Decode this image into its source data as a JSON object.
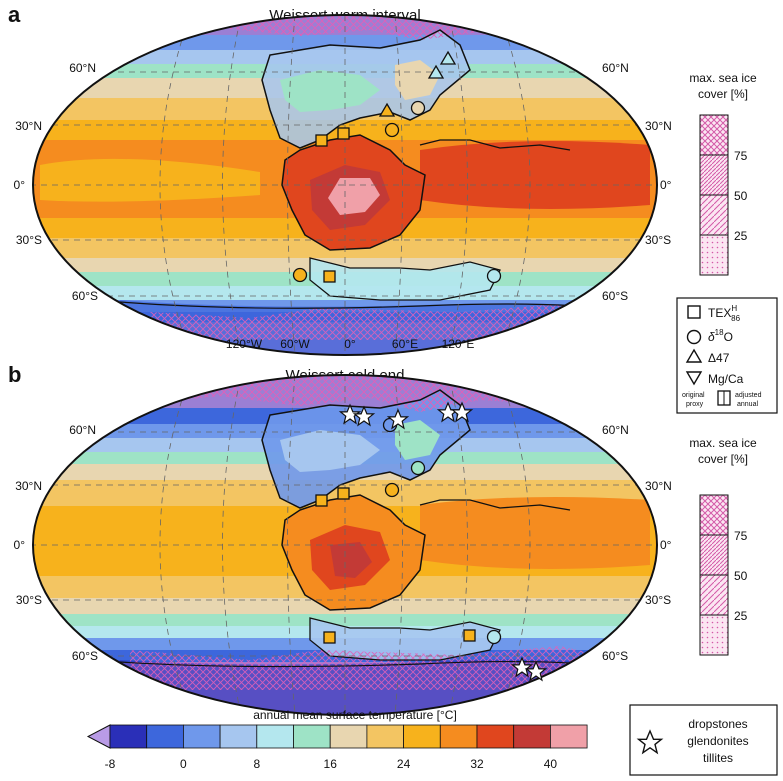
{
  "panels": [
    {
      "letter": "a",
      "title": "Weissert warm interval",
      "lat_labels": {
        "n60": "60°N",
        "n30": "30°N",
        "eq": "0°",
        "s30": "30°S",
        "s60": "60°S"
      },
      "lon_labels": [
        "120°W",
        "60°W",
        "0°",
        "60°E",
        "120°E"
      ]
    },
    {
      "letter": "b",
      "title": "Weissert cold end",
      "lat_labels": {
        "n60": "60°N",
        "n30": "30°N",
        "eq": "0°",
        "s30": "30°S",
        "s60": "60°S"
      }
    }
  ],
  "sea_ice_legend": {
    "title_line1": "max. sea ice",
    "title_line2": "cover [%]",
    "ticks": [
      "75",
      "50",
      "25"
    ]
  },
  "proxy_legend": {
    "tex86": "TEX",
    "tex86_sup": "H",
    "tex86_sub": "86",
    "d18o_prefix": "δ",
    "d18o_sup": "18",
    "d18o_suffix": "O",
    "d47": "Δ47",
    "mgca": "Mg/Ca",
    "original_line1": "original",
    "original_line2": "proxy",
    "adjusted_line1": "adjusted",
    "adjusted_line2": "annual"
  },
  "colorbar": {
    "title": "annual mean surface temperature [°C]",
    "tick_labels": [
      "-8",
      "0",
      "8",
      "16",
      "24",
      "32",
      "40"
    ],
    "colors": [
      "#b99be6",
      "#2a2fb8",
      "#3d67dc",
      "#6f98eb",
      "#a6c6ef",
      "#b4e7ee",
      "#9ee3c6",
      "#e8d6b0",
      "#f3c562",
      "#f7b21c",
      "#f58c1f",
      "#e0461e",
      "#c33a36",
      "#f0a0a8"
    ]
  },
  "glacial_legend": {
    "line1": "dropstones",
    "line2": "glendonites",
    "line3": "tillites"
  }
}
